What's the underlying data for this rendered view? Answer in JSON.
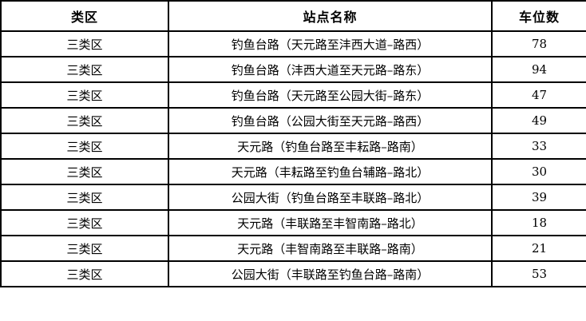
{
  "colors": {
    "border": "#000000",
    "background": "#ffffff",
    "text": "#000000"
  },
  "table": {
    "headers": {
      "zone": "类区",
      "station": "站点名称",
      "spaces": "车位数"
    },
    "rows": [
      {
        "zone": "三类区",
        "station": "钓鱼台路（天元路至沣西大道–路西）",
        "spaces": "78"
      },
      {
        "zone": "三类区",
        "station": "钓鱼台路（沣西大道至天元路–路东）",
        "spaces": "94"
      },
      {
        "zone": "三类区",
        "station": "钓鱼台路（天元路至公园大街–路东）",
        "spaces": "47"
      },
      {
        "zone": "三类区",
        "station": "钓鱼台路（公园大街至天元路–路西）",
        "spaces": "49"
      },
      {
        "zone": "三类区",
        "station": "天元路（钓鱼台路至丰耘路–路南）",
        "spaces": "33"
      },
      {
        "zone": "三类区",
        "station": "天元路（丰耘路至钓鱼台辅路–路北）",
        "spaces": "30"
      },
      {
        "zone": "三类区",
        "station": "公园大街（钓鱼台路至丰联路–路北）",
        "spaces": "39"
      },
      {
        "zone": "三类区",
        "station": "天元路（丰联路至丰智南路–路北）",
        "spaces": "18"
      },
      {
        "zone": "三类区",
        "station": "天元路（丰智南路至丰联路–路南）",
        "spaces": "21"
      },
      {
        "zone": "三类区",
        "station": "公园大街（丰联路至钓鱼台路–路南）",
        "spaces": "53"
      }
    ]
  }
}
